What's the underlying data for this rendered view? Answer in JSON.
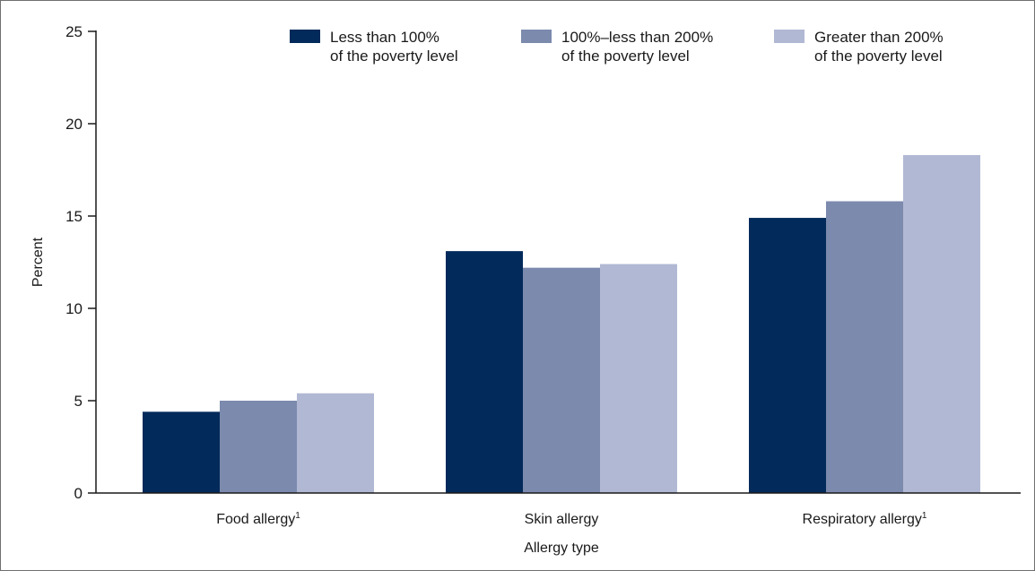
{
  "chart_data": {
    "type": "bar",
    "categories": [
      "Food allergy",
      "Skin allergy",
      "Respiratory allergy"
    ],
    "category_footnotes": [
      "1",
      "",
      "1"
    ],
    "series": [
      {
        "name": "Less than 100% of the poverty level",
        "legend_lines": [
          "Less than 100%",
          "of the poverty level"
        ],
        "color": "#022a5a",
        "values": [
          4.4,
          13.1,
          14.9
        ]
      },
      {
        "name": "100%–less than 200% of the poverty level",
        "legend_lines": [
          "100%–less than 200%",
          "of the poverty level"
        ],
        "color": "#7b8aad",
        "values": [
          5.0,
          12.2,
          15.8
        ]
      },
      {
        "name": "Greater than 200% of the poverty level",
        "legend_lines": [
          "Greater than 200%",
          "of the poverty level"
        ],
        "color": "#b1b8d3",
        "values": [
          5.4,
          12.4,
          18.3
        ]
      }
    ],
    "title": "",
    "xlabel": "Allergy type",
    "ylabel": "Percent",
    "ylim": [
      0,
      25
    ],
    "yticks": [
      0,
      5,
      10,
      15,
      20,
      25
    ],
    "grid": false,
    "legend_position": "top-right"
  }
}
